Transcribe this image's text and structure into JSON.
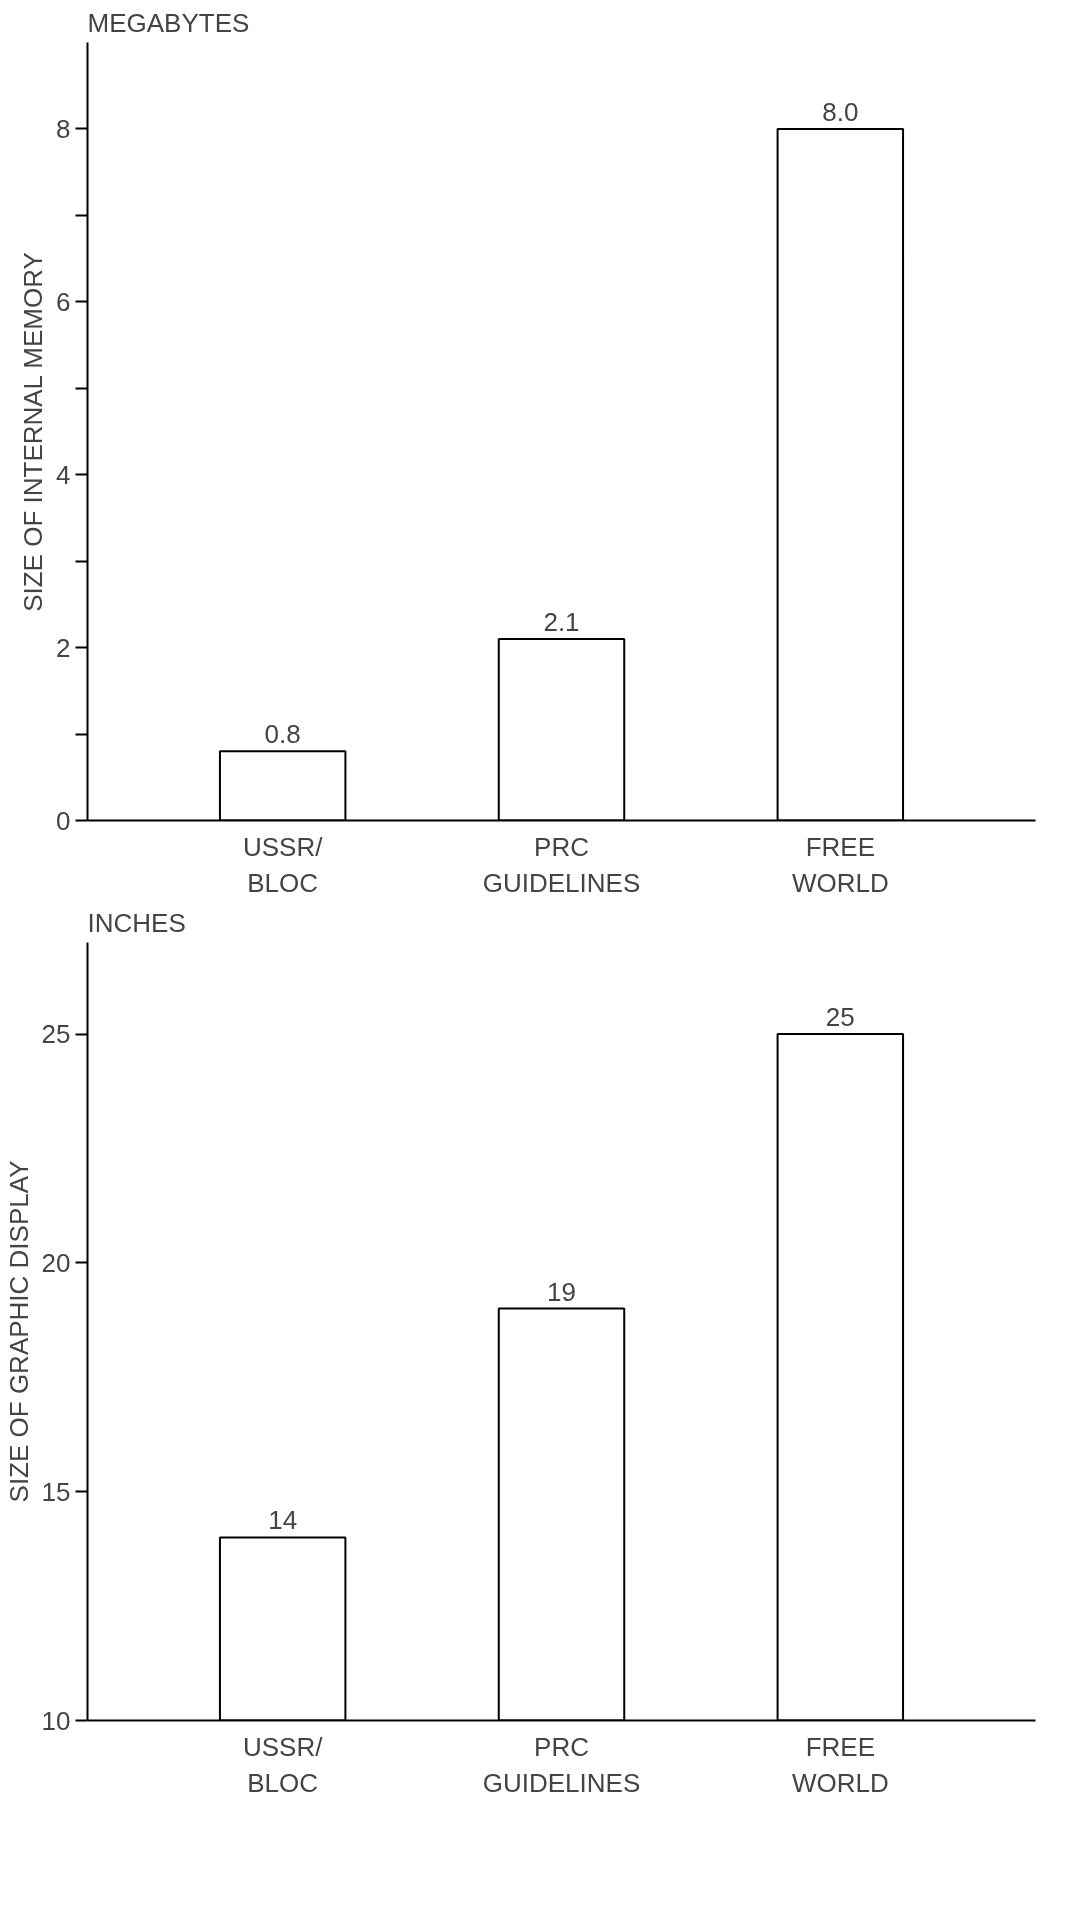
{
  "chart_data": [
    {
      "type": "bar",
      "title": "MEGABYTES",
      "ylabel": "SIZE OF INTERNAL MEMORY",
      "categories": [
        "USSR/\nBLOC",
        "PRC\nGUIDELINES",
        "FREE\nWORLD"
      ],
      "values": [
        0.8,
        2.1,
        8.0
      ],
      "value_labels": [
        "0.8",
        "2.1",
        "8.0"
      ],
      "color": "#ffffff",
      "ylim": [
        0,
        9
      ],
      "yticks": [
        0,
        {
          "value": 1,
          "label": null
        },
        2,
        {
          "value": 3,
          "label": null
        },
        4,
        {
          "value": 5,
          "label": null
        },
        6,
        {
          "value": 7,
          "label": null
        },
        8
      ],
      "grid": false
    },
    {
      "type": "bar",
      "title": "INCHES",
      "ylabel": "SIZE OF GRAPHIC DISPLAY",
      "categories": [
        "USSR/\nBLOC",
        "PRC\nGUIDELINES",
        "FREE\nWORLD"
      ],
      "values": [
        14,
        19,
        25
      ],
      "data_labels": true,
      "color": "#ffffff",
      "ylim": [
        10,
        27
      ],
      "yticks": [
        10,
        15,
        20,
        25
      ],
      "grid": false
    }
  ]
}
